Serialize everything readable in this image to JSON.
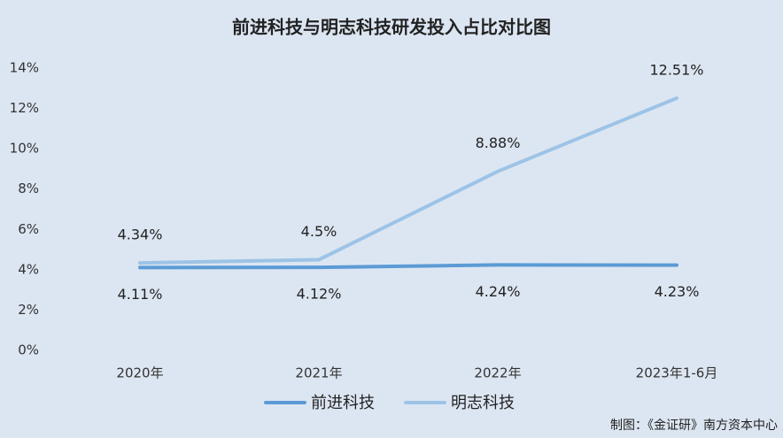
{
  "chart_data": {
    "type": "line",
    "title": "前进科技与明志科技研发投入占比对比图",
    "categories": [
      "2020年",
      "2021年",
      "2022年",
      "2023年1-6月"
    ],
    "series": [
      {
        "name": "前进科技",
        "color": "#5b9bd5",
        "values": [
          4.11,
          4.12,
          4.24,
          4.23
        ],
        "value_labels": [
          "4.11%",
          "4.12%",
          "4.24%",
          "4.23%"
        ]
      },
      {
        "name": "明志科技",
        "color": "#9dc3e6",
        "values": [
          4.34,
          4.5,
          8.88,
          12.51
        ],
        "value_labels": [
          "4.34%",
          "4.5%",
          "8.88%",
          "12.51%"
        ]
      }
    ],
    "ylim": [
      0,
      14
    ],
    "yticks": [
      {
        "value": 0,
        "label": "0%"
      },
      {
        "value": 2,
        "label": "2%"
      },
      {
        "value": 4,
        "label": "4%"
      },
      {
        "value": 6,
        "label": "6%"
      },
      {
        "value": 8,
        "label": "8%"
      },
      {
        "value": 10,
        "label": "10%"
      },
      {
        "value": 12,
        "label": "12%"
      },
      {
        "value": 14,
        "label": "14%"
      }
    ],
    "grid": false,
    "legend": "bottom",
    "source": "制图：《金证研》南方资本中心"
  }
}
